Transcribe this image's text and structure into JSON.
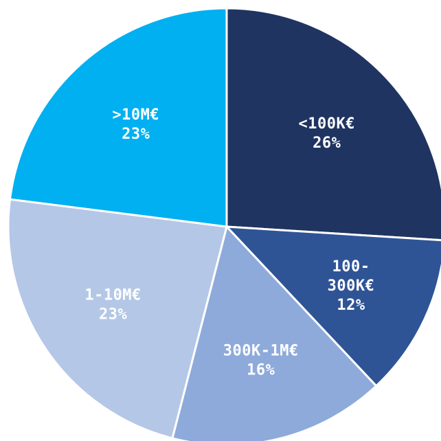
{
  "chart_data": {
    "type": "pie",
    "title": "",
    "slices": [
      {
        "label": "<100K€",
        "value": 26,
        "value_label": "26%",
        "color": "#1f3461"
      },
      {
        "label": "100-\n300K€",
        "value": 12,
        "value_label": "12%",
        "color": "#2f5496"
      },
      {
        "label": "300K-1M€",
        "value": 16,
        "value_label": "16%",
        "color": "#8eaadb"
      },
      {
        "label": "1-10M€",
        "value": 23,
        "value_label": "23%",
        "color": "#b4c7e7"
      },
      {
        "label": ">10M€",
        "value": 23,
        "value_label": "23%",
        "color": "#00b0f0"
      }
    ],
    "start_angle_deg": 0,
    "direction": "clockwise",
    "legend": "none"
  }
}
